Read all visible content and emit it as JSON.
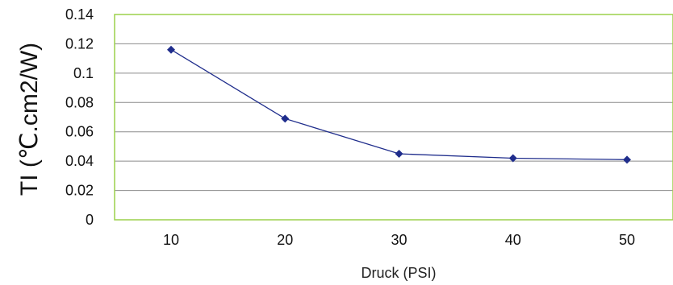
{
  "chart_data": {
    "type": "line",
    "x": [
      10,
      20,
      30,
      40,
      50
    ],
    "series": [
      {
        "values": [
          0.116,
          0.069,
          0.045,
          0.042,
          0.041
        ]
      }
    ],
    "xlabel": "Druck (PSI)",
    "ylabel": "TI (℃.cm2/W)",
    "ylim": [
      0,
      0.14
    ],
    "yticks": [
      "0",
      "0.02",
      "0.04",
      "0.06",
      "0.08",
      "0.1",
      "0.12",
      "0.14"
    ],
    "xticks": [
      "10",
      "20",
      "30",
      "40",
      "50"
    ],
    "grid": "horizontal",
    "colors": {
      "series": "#1f2d8c",
      "marker": "#1f2d8c",
      "plot_border": "#9bd14a",
      "gridline": "#8c8c8c"
    }
  }
}
